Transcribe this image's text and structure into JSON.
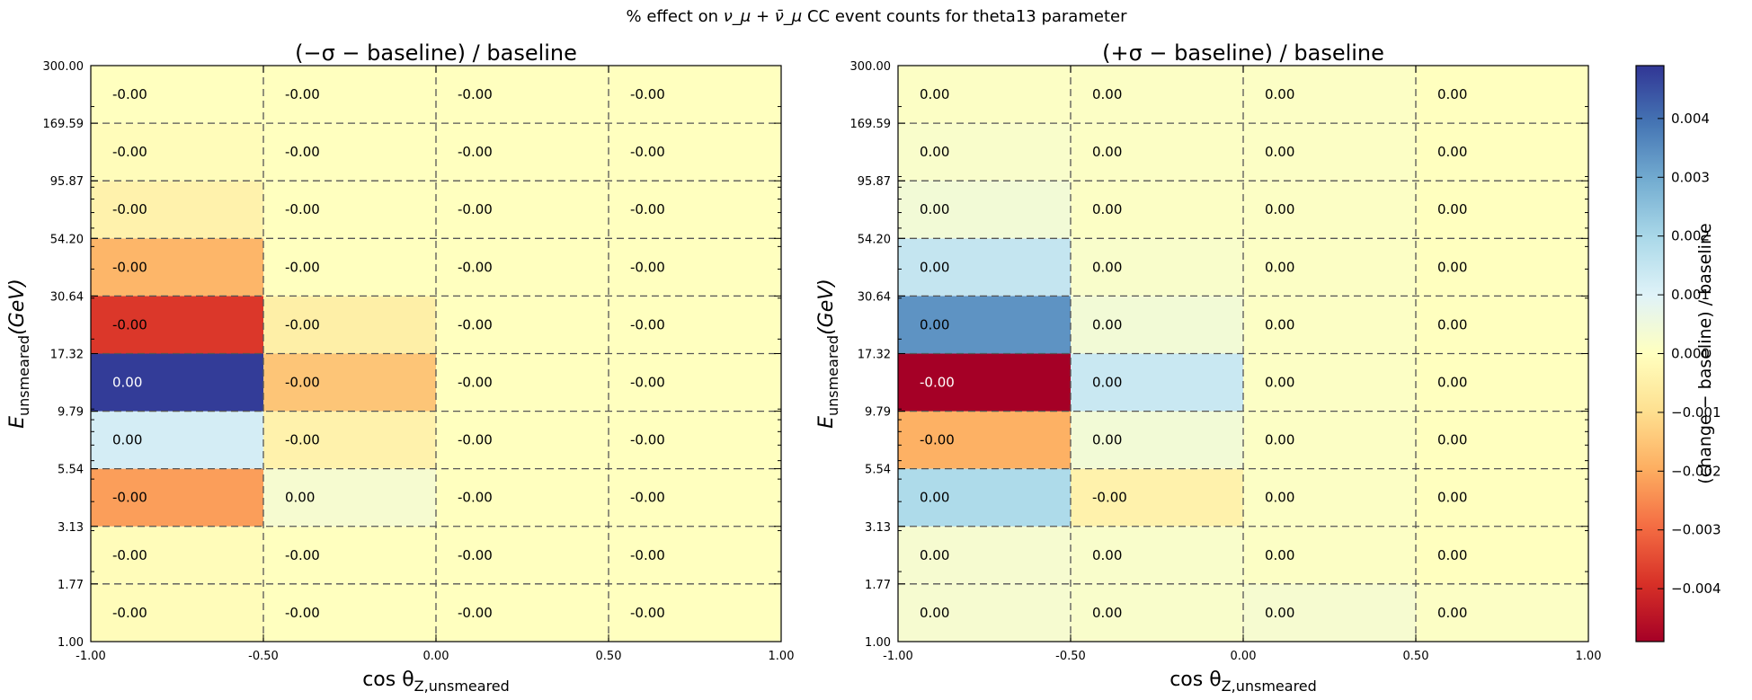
{
  "figure": {
    "title_prefix": "% effect on ",
    "title_math": "ν_μ + ν̄_μ",
    "title_suffix": " CC event counts for theta13 parameter"
  },
  "chart_data": [
    {
      "type": "heatmap",
      "title": "(−σ − baseline) / baseline",
      "xlabel": "cos θ_Z,unsmeared",
      "ylabel": "E_unsmeared (GeV)",
      "x_edges": [
        -1.0,
        -0.5,
        0.0,
        0.5,
        1.0
      ],
      "x_tick_labels": [
        "-1.00",
        "-0.50",
        "0.00",
        "0.50",
        "1.00"
      ],
      "y_edges": [
        1.0,
        1.77,
        3.13,
        5.54,
        9.79,
        17.32,
        30.64,
        54.2,
        95.87,
        169.59,
        300.0
      ],
      "y_tick_labels": [
        "1.00",
        "1.77",
        "3.13",
        "5.54",
        "9.79",
        "17.32",
        "30.64",
        "54.20",
        "95.87",
        "169.59",
        "300.00"
      ],
      "y_scale": "log",
      "values": [
        [
          -0.0001,
          -0.0,
          -0.0,
          -0.0
        ],
        [
          -0.0001,
          -0.0,
          -0.0,
          -0.0
        ],
        [
          -0.0022,
          0.0003,
          -0.0,
          -0.0
        ],
        [
          0.0012,
          -0.0004,
          -0.0,
          -0.0
        ],
        [
          0.0048,
          -0.0015,
          -0.0,
          -0.0
        ],
        [
          -0.0038,
          -0.0005,
          -0.0,
          -0.0
        ],
        [
          -0.0018,
          -0.0,
          -0.0,
          -0.0
        ],
        [
          -0.0004,
          -0.0,
          -0.0,
          -0.0
        ],
        [
          -0.0001,
          -0.0,
          -0.0,
          -0.0
        ],
        [
          -0.0,
          -0.0,
          -0.0,
          -0.0
        ]
      ],
      "cell_labels": [
        [
          "-0.00",
          "-0.00",
          "-0.00",
          "-0.00"
        ],
        [
          "-0.00",
          "-0.00",
          "-0.00",
          "-0.00"
        ],
        [
          "-0.00",
          "0.00",
          "-0.00",
          "-0.00"
        ],
        [
          "0.00",
          "-0.00",
          "-0.00",
          "-0.00"
        ],
        [
          "0.00",
          "-0.00",
          "-0.00",
          "-0.00"
        ],
        [
          "-0.00",
          "-0.00",
          "-0.00",
          "-0.00"
        ],
        [
          "-0.00",
          "-0.00",
          "-0.00",
          "-0.00"
        ],
        [
          "-0.00",
          "-0.00",
          "-0.00",
          "-0.00"
        ],
        [
          "-0.00",
          "-0.00",
          "-0.00",
          "-0.00"
        ],
        [
          "-0.00",
          "-0.00",
          "-0.00",
          "-0.00"
        ]
      ],
      "grid": true
    },
    {
      "type": "heatmap",
      "title": "(+σ − baseline) / baseline",
      "xlabel": "cos θ_Z,unsmeared",
      "ylabel": "E_unsmeared (GeV)",
      "x_edges": [
        -1.0,
        -0.5,
        0.0,
        0.5,
        1.0
      ],
      "x_tick_labels": [
        "-1.00",
        "-0.50",
        "0.00",
        "0.50",
        "1.00"
      ],
      "y_edges": [
        1.0,
        1.77,
        3.13,
        5.54,
        9.79,
        17.32,
        30.64,
        54.2,
        95.87,
        169.59,
        300.0
      ],
      "y_tick_labels": [
        "1.00",
        "1.77",
        "3.13",
        "5.54",
        "9.79",
        "17.32",
        "30.64",
        "54.20",
        "95.87",
        "169.59",
        "300.00"
      ],
      "y_scale": "log",
      "values": [
        [
          0.0003,
          0.0002,
          0.0003,
          0.0001
        ],
        [
          0.0003,
          0.0002,
          0.0001,
          0.0
        ],
        [
          0.0019,
          -0.0004,
          0.0001,
          0.0
        ],
        [
          -0.0019,
          0.0004,
          0.0001,
          0.0
        ],
        [
          -0.0049,
          0.0014,
          0.0001,
          0.0
        ],
        [
          0.0034,
          0.0004,
          0.0001,
          0.0
        ],
        [
          0.0015,
          0.0002,
          0.0001,
          0.0
        ],
        [
          0.0004,
          0.0001,
          0.0001,
          0.0
        ],
        [
          0.0002,
          0.0001,
          0.0001,
          0.0
        ],
        [
          0.0001,
          0.0001,
          0.0001,
          0.0
        ]
      ],
      "cell_labels": [
        [
          "0.00",
          "0.00",
          "0.00",
          "0.00"
        ],
        [
          "0.00",
          "0.00",
          "0.00",
          "0.00"
        ],
        [
          "0.00",
          "-0.00",
          "0.00",
          "0.00"
        ],
        [
          "-0.00",
          "0.00",
          "0.00",
          "0.00"
        ],
        [
          "-0.00",
          "0.00",
          "0.00",
          "0.00"
        ],
        [
          "0.00",
          "0.00",
          "0.00",
          "0.00"
        ],
        [
          "0.00",
          "0.00",
          "0.00",
          "0.00"
        ],
        [
          "0.00",
          "0.00",
          "0.00",
          "0.00"
        ],
        [
          "0.00",
          "0.00",
          "0.00",
          "0.00"
        ],
        [
          "0.00",
          "0.00",
          "0.00",
          "0.00"
        ]
      ],
      "grid": true
    }
  ],
  "colorbar": {
    "label": "(change − baseline) / baseline",
    "colormap": "RdYlBu",
    "vmin": -0.0049,
    "vmax": 0.0049,
    "ticks": [
      -0.004,
      -0.003,
      -0.002,
      -0.001,
      0.0,
      0.001,
      0.002,
      0.003,
      0.004
    ],
    "tick_labels": [
      "−0.004",
      "−0.003",
      "−0.002",
      "−0.001",
      "0.000",
      "0.001",
      "0.002",
      "0.003",
      "0.004"
    ],
    "stops": [
      "#a50026",
      "#d73027",
      "#f46d43",
      "#fdae61",
      "#fee090",
      "#ffffbf",
      "#e0f3f8",
      "#abd9e9",
      "#74add1",
      "#4575b4",
      "#313695"
    ]
  }
}
